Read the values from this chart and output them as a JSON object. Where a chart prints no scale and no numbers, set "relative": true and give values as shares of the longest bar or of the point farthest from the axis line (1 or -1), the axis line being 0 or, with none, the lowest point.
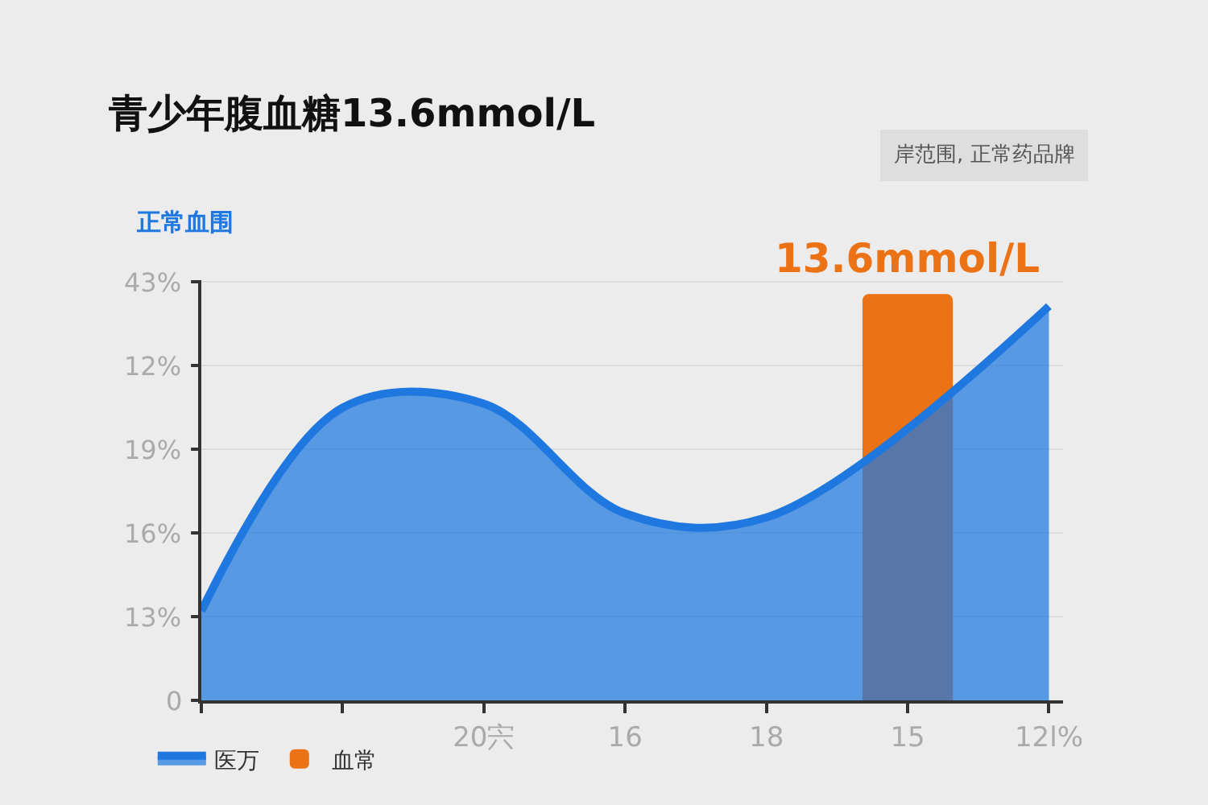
{
  "chart_data": {
    "type": "area",
    "title": "青少年腹血糖13.6mmol/L",
    "ylabel": "正常血围",
    "relative": true,
    "annotations": [
      "岸范围, 正常药品牌",
      "0",
      "13%",
      "16%",
      "19%",
      "12%",
      "43%",
      {
        "text": "13.6mmol/L",
        "x": "15",
        "y": 1
      }
    ],
    "categories": [
      null,
      null,
      "20宍",
      "16",
      "18",
      "15",
      "12l%"
    ],
    "series": [
      {
        "name": "医万",
        "color": "#1f78e0",
        "values": [
          0.22,
          0.72,
          0.73,
          0.46,
          0.45,
          null,
          0.97
        ]
      },
      {
        "name": "血常",
        "color": "#ec7216",
        "type": "bar",
        "values": [
          null,
          null,
          null,
          null,
          null,
          1,
          null
        ]
      }
    ],
    "grid": "y",
    "legend": "bottom left"
  }
}
